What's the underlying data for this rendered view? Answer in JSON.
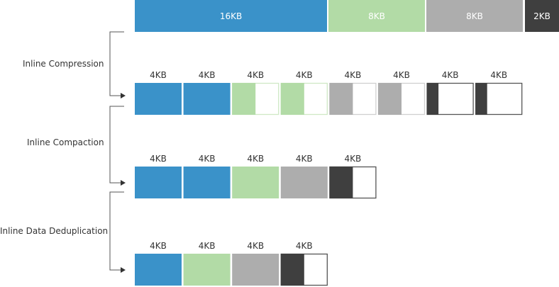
{
  "colors": {
    "blue": "#3a92c9",
    "green": "#b2dba6",
    "gray": "#adadad",
    "dark": "#3f3f3f",
    "line": "#555555"
  },
  "source_blocks": [
    {
      "label": "16KB",
      "color": "blue"
    },
    {
      "label": "8KB",
      "color": "green"
    },
    {
      "label": "8KB",
      "color": "gray"
    },
    {
      "label": "2KB",
      "color": "dark"
    }
  ],
  "steps": [
    {
      "label": "Inline Compression"
    },
    {
      "label": "Inline Compaction"
    },
    {
      "label": "Inline Data Deduplication"
    }
  ],
  "rows": [
    {
      "blocks": [
        {
          "label": "4KB",
          "color": "blue",
          "fill": 1
        },
        {
          "label": "4KB",
          "color": "blue",
          "fill": 1
        },
        {
          "label": "4KB",
          "color": "green",
          "fill": 0.5
        },
        {
          "label": "4KB",
          "color": "green",
          "fill": 0.5
        },
        {
          "label": "4KB",
          "color": "gray",
          "fill": 0.5
        },
        {
          "label": "4KB",
          "color": "gray",
          "fill": 0.5
        },
        {
          "label": "4KB",
          "color": "dark",
          "fill": 0.25
        },
        {
          "label": "4KB",
          "color": "dark",
          "fill": 0.25
        }
      ]
    },
    {
      "blocks": [
        {
          "label": "4KB",
          "color": "blue",
          "fill": 1
        },
        {
          "label": "4KB",
          "color": "blue",
          "fill": 1
        },
        {
          "label": "4KB",
          "color": "green",
          "fill": 1
        },
        {
          "label": "4KB",
          "color": "gray",
          "fill": 1
        },
        {
          "label": "4KB",
          "color": "dark",
          "fill": 0.5
        }
      ]
    },
    {
      "blocks": [
        {
          "label": "4KB",
          "color": "blue",
          "fill": 1
        },
        {
          "label": "4KB",
          "color": "green",
          "fill": 1
        },
        {
          "label": "4KB",
          "color": "gray",
          "fill": 1
        },
        {
          "label": "4KB",
          "color": "dark",
          "fill": 0.5
        }
      ]
    }
  ]
}
